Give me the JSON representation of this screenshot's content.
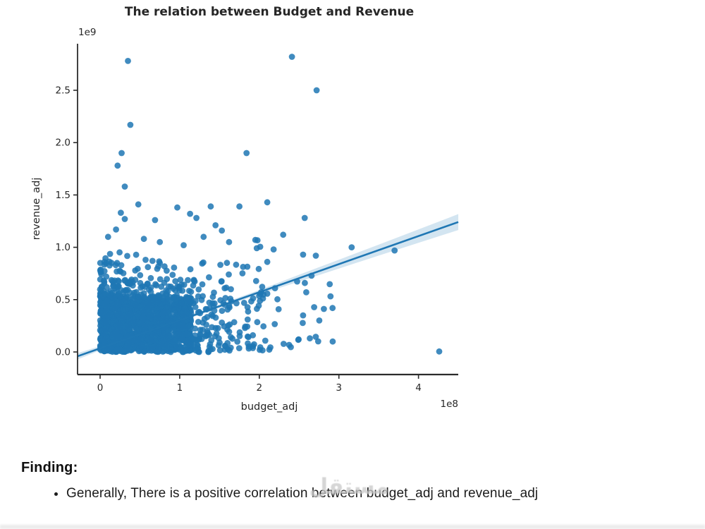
{
  "page": {
    "watermark": "مستقل",
    "finding": {
      "heading": "Finding:",
      "bullet": "Generally, There is a positive correlation between budget_adj and revenue_adj"
    }
  },
  "chart_data": {
    "type": "scatter",
    "title": "The relation between Budget and Revenue",
    "xlabel": "budget_adj",
    "ylabel": "revenue_adj",
    "x_offset_label": "1e8",
    "y_offset_label": "1e9",
    "x_units": 100000000,
    "y_units": 1000000000,
    "xlim": [
      -0.283,
      4.5
    ],
    "ylim": [
      -0.216,
      2.944
    ],
    "x_ticks": [
      0,
      1,
      2,
      3,
      4
    ],
    "y_ticks": [
      "0.0",
      "0.5",
      "1.0",
      "1.5",
      "2.0",
      "2.5"
    ],
    "grid": false,
    "legend": "none",
    "marker_color": "#1f77b4",
    "marker_opacity": 0.85,
    "marker_radius": 4.4,
    "line_color": "#1f77b4",
    "band_color": "#a8cbe3",
    "band_opacity": 0.5,
    "axis_color": "#2b2b2b",
    "regression_line": {
      "x1": -0.283,
      "y1": -0.041,
      "x2": 4.5,
      "y2": 1.241
    },
    "confidence_band": [
      [
        -0.28,
        -0.07,
        -0.01
      ],
      [
        0.0,
        0.015,
        0.055
      ],
      [
        0.5,
        0.155,
        0.183
      ],
      [
        1.0,
        0.29,
        0.317
      ],
      [
        1.5,
        0.42,
        0.455
      ],
      [
        2.0,
        0.55,
        0.592
      ],
      [
        2.5,
        0.672,
        0.738
      ],
      [
        3.0,
        0.797,
        0.881
      ],
      [
        3.5,
        0.921,
        1.025
      ],
      [
        4.0,
        1.043,
        1.171
      ],
      [
        4.5,
        1.165,
        1.317
      ]
    ],
    "outlier_points": [
      [
        0.35,
        2.78
      ],
      [
        2.41,
        2.82
      ],
      [
        2.72,
        2.5
      ],
      [
        0.38,
        2.17
      ],
      [
        0.27,
        1.9
      ],
      [
        1.84,
        1.9
      ],
      [
        0.22,
        1.78
      ],
      [
        0.31,
        1.58
      ],
      [
        0.48,
        1.41
      ],
      [
        2.1,
        1.43
      ],
      [
        1.39,
        1.39
      ],
      [
        1.75,
        1.39
      ],
      [
        0.97,
        1.38
      ],
      [
        0.26,
        1.33
      ],
      [
        1.13,
        1.32
      ],
      [
        1.21,
        1.28
      ],
      [
        2.57,
        1.28
      ],
      [
        0.31,
        1.27
      ],
      [
        0.69,
        1.26
      ],
      [
        1.45,
        1.21
      ],
      [
        0.2,
        1.17
      ],
      [
        1.53,
        1.16
      ],
      [
        2.3,
        1.12
      ],
      [
        0.1,
        1.1
      ],
      [
        0.55,
        1.08
      ],
      [
        1.3,
        1.1
      ],
      [
        0.75,
        1.05
      ],
      [
        1.62,
        1.05
      ],
      [
        1.05,
        1.02
      ],
      [
        1.95,
        1.07
      ],
      [
        2.18,
        0.98
      ],
      [
        3.16,
        1.0
      ],
      [
        3.7,
        0.97
      ],
      [
        2.55,
        0.93
      ],
      [
        2.71,
        0.92
      ],
      [
        2.59,
        0.57
      ],
      [
        2.92,
        0.42
      ],
      [
        2.55,
        0.35
      ],
      [
        4.26,
        0.005
      ]
    ],
    "dense_clusters": [
      {
        "n": 1050,
        "x_range": [
          0.0,
          1.15
        ],
        "y_range": [
          0.0,
          0.53
        ],
        "x_pow": 1.0,
        "y_pow": 1.0
      },
      {
        "n": 330,
        "x_range": [
          0.0,
          1.65
        ],
        "y_range": [
          0.0,
          0.7
        ],
        "x_pow": 1.4,
        "y_pow": 1.2
      },
      {
        "n": 240,
        "x_range": [
          0.0,
          2.05
        ],
        "y_range": [
          0.0,
          0.9
        ],
        "x_pow": 1.9,
        "y_pow": 1.6
      },
      {
        "n": 120,
        "x_range": [
          0.05,
          2.45
        ],
        "y_range": [
          0.02,
          1.08
        ],
        "x_pow": 2.2,
        "y_pow": 2.0
      },
      {
        "n": 26,
        "x_range": [
          1.9,
          2.95
        ],
        "y_range": [
          0.02,
          0.8
        ],
        "x_pow": 1.0,
        "y_pow": 1.8
      }
    ],
    "seed": 42
  }
}
